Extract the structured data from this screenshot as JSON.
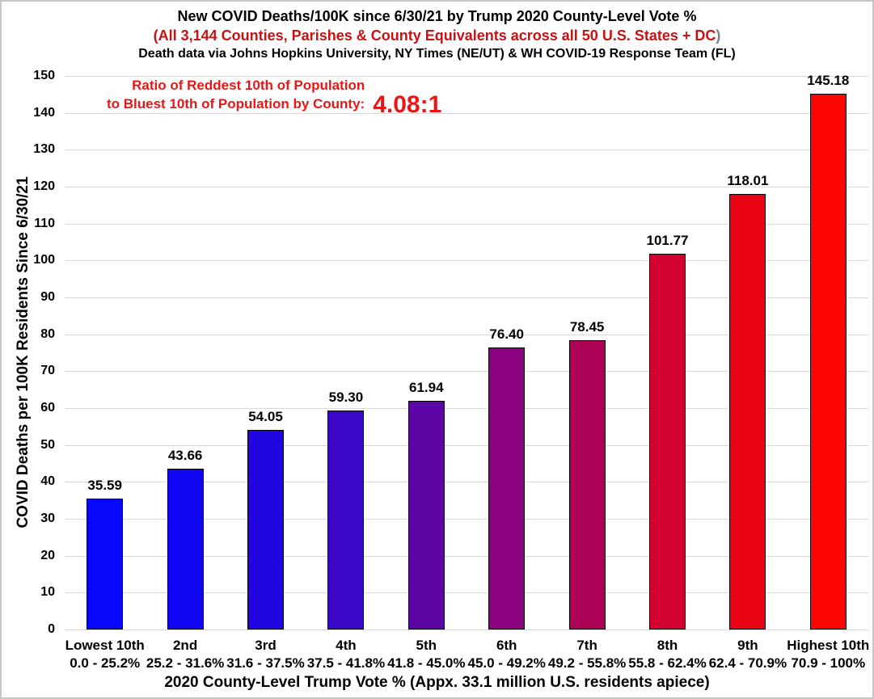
{
  "header": {
    "title": "New COVID Deaths/100K since 6/30/21 by Trump 2020 County-Level Vote %",
    "subtitle_red": "(All 3,144 Counties, Parishes & County Equivalents across all 50 U.S. States + DC",
    "subtitle_paren": ")",
    "source_line": "Death data via Johns Hopkins University, NY Times (NE/UT) & WH COVID-19 Response Team (FL)"
  },
  "annotation": {
    "line1": "Ratio of Reddest 10th of Population",
    "line2": "to Bluest 10th of Population by County:",
    "ratio_value": "4.08:1"
  },
  "colors": {
    "title_text": "#000000",
    "subtitle_red": "#c41414",
    "subtitle_paren_gray": "#7f7f7f",
    "annotation_red": "#e81717",
    "grid": "#d9d9d9",
    "bar_border": "#000000",
    "page_border": "#c6c6c6"
  },
  "chart_data": {
    "type": "bar",
    "title": "New COVID Deaths/100K since 6/30/21 by Trump 2020 County-Level Vote %",
    "subtitle": "(All 3,144 Counties, Parishes & County Equivalents across all 50 U.S. States + DC)",
    "source": "Death data via Johns Hopkins University, NY Times (NE/UT) & WH COVID-19 Response Team (FL)",
    "xlabel": "2020 County-Level Trump Vote % (Appx. 33.1 million U.S. residents apiece)",
    "ylabel": "COVID Deaths per 100K Residents Since 6/30/21",
    "ylim": [
      0,
      150
    ],
    "ytick_step": 10,
    "grid": true,
    "legend": false,
    "categories": [
      "Lowest 10th",
      "2nd",
      "3rd",
      "4th",
      "5th",
      "6th",
      "7th",
      "8th",
      "9th",
      "Highest 10th"
    ],
    "category_ranges": [
      "0.0 - 25.2%",
      "25.2 - 31.6%",
      "31.6 - 37.5%",
      "37.5 - 41.8%",
      "41.8 - 45.0%",
      "45.0 - 49.2%",
      "49.2 - 55.8%",
      "55.8 - 62.4%",
      "62.4 - 70.9%",
      "70.9 - 100%"
    ],
    "values": [
      35.59,
      43.66,
      54.05,
      59.3,
      61.94,
      76.4,
      78.45,
      101.77,
      118.01,
      145.18
    ],
    "value_labels": [
      "35.59",
      "43.66",
      "54.05",
      "59.30",
      "61.94",
      "76.40",
      "78.45",
      "101.77",
      "118.01",
      "145.18"
    ],
    "bar_colors": [
      "#0707fa",
      "#0e05f2",
      "#2007e2",
      "#3b07c6",
      "#5d06a6",
      "#8b0380",
      "#ad0356",
      "#d20330",
      "#ea0315",
      "#fb0505"
    ],
    "annotation": "Ratio of Reddest 10th of Population to Bluest 10th of Population by County: 4.08:1"
  }
}
